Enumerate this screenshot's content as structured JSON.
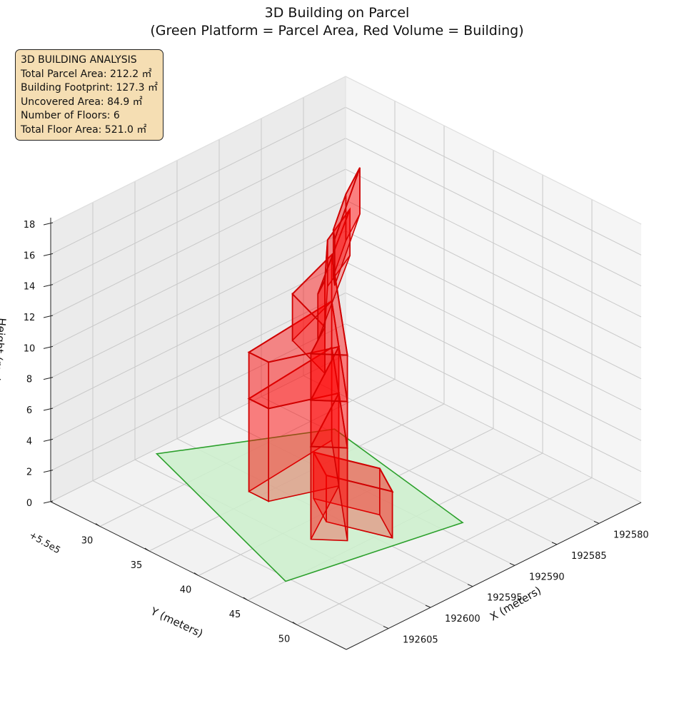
{
  "chart_data": {
    "type": "3d-polygons",
    "title": "3D Building on Parcel",
    "subtitle": "(Green Platform = Parcel Area, Red Volume = Building)",
    "xlabel": "X (meters)",
    "ylabel": "Y (meters)",
    "zlabel": "Height (meters)",
    "y_offset_label": "+5.5e5",
    "x_ticks": [
      192580,
      192585,
      192590,
      192595,
      192600,
      192605
    ],
    "y_ticks": [
      30,
      35,
      40,
      45,
      50
    ],
    "z_ticks": [
      0,
      2,
      4,
      6,
      8,
      10,
      12,
      14,
      16,
      18
    ],
    "xlim": [
      192575,
      192610
    ],
    "ylim": [
      25,
      55
    ],
    "zlim": [
      0,
      18
    ],
    "grid": true,
    "colors": {
      "parcel_fill": "#ccf0cc",
      "parcel_edge": "#2ca02c",
      "building": "#ff0000",
      "building_edge": "#d00000",
      "info_bg": "#f5deb3"
    },
    "info_box": {
      "lines": [
        "3D BUILDING ANALYSIS",
        "Total Parcel Area: 212.2 ㎡",
        "Building Footprint: 127.3 ㎡",
        "Uncovered Area: 84.9 ㎡",
        "Number of Floors: 6",
        "Total Floor Area: 521.0 ㎡"
      ]
    },
    "parcel_polygon": [
      [
        192584.5,
        32
      ],
      [
        192588,
        48
      ],
      [
        192605.5,
        45
      ],
      [
        192598,
        25.5
      ]
    ],
    "floor_height": 3,
    "floors": [
      {
        "floor": 1,
        "z": [
          0,
          3
        ],
        "footprint": [
          [
            192592,
            43
          ],
          [
            192594,
            38
          ],
          [
            192596,
            41
          ],
          [
            192594,
            46
          ]
        ]
      },
      {
        "floor": 2,
        "z": [
          0,
          6
        ],
        "footprint": [
          [
            192586,
            33
          ],
          [
            192597,
            34
          ],
          [
            192597,
            36
          ],
          [
            192591,
            38
          ],
          [
            192599,
            42
          ],
          [
            192597,
            44
          ]
        ]
      },
      {
        "floor": 3,
        "z": [
          6,
          9
        ],
        "footprint": [
          [
            192586,
            33
          ],
          [
            192597,
            34
          ],
          [
            192597,
            36
          ],
          [
            192591,
            38
          ],
          [
            192599,
            42
          ],
          [
            192597,
            44
          ]
        ]
      },
      {
        "floor": 4,
        "z": [
          9,
          12
        ],
        "footprint": [
          [
            192586,
            33
          ],
          [
            192593,
            35
          ],
          [
            192595,
            40
          ],
          [
            192599,
            42
          ],
          [
            192597,
            44
          ]
        ]
      },
      {
        "floor": 5,
        "z": [
          12,
          15
        ],
        "footprint": [
          [
            192585,
            34
          ],
          [
            192590,
            36
          ],
          [
            192595,
            40
          ],
          [
            192597,
            41
          ]
        ]
      },
      {
        "floor": 6,
        "z": [
          15,
          18
        ],
        "footprint": [
          [
            192585,
            35
          ],
          [
            192589,
            37
          ],
          [
            192594,
            40
          ],
          [
            192595,
            41
          ]
        ]
      }
    ]
  }
}
